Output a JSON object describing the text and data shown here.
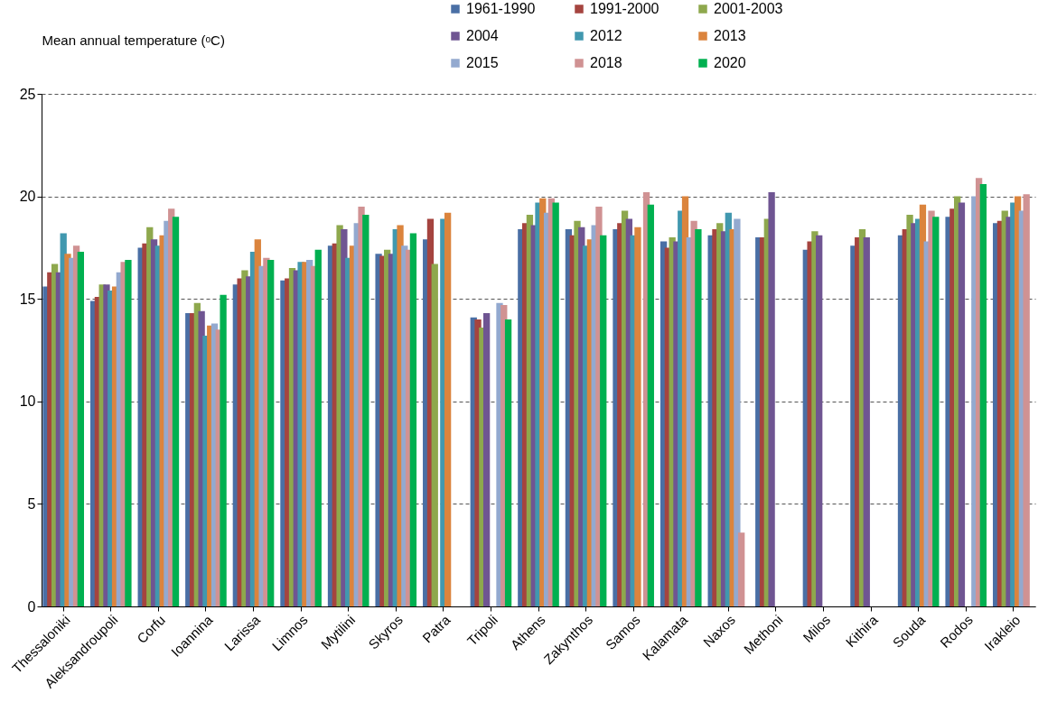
{
  "chart_data": {
    "type": "bar",
    "ylabel": "Mean annual temperature (ᵒC)",
    "categories": [
      "Thessaloniki",
      "Aleksandroupoli",
      "Corfu",
      "Ioannina",
      "Larissa",
      "Limnos",
      "Mytilini",
      "Skyros",
      "Patra",
      "Tripoli",
      "Athens",
      "Zakynthos",
      "Samos",
      "Kalamata",
      "Naxos",
      "Methoni",
      "Milos",
      "Kithira",
      "Souda",
      "Rodos",
      "Irakleio"
    ],
    "series": [
      {
        "name": "1961-1990",
        "color": "#4a6fa5",
        "values": [
          15.6,
          14.9,
          17.5,
          14.3,
          15.7,
          15.9,
          17.6,
          17.2,
          17.9,
          14.1,
          18.4,
          18.4,
          18.4,
          17.8,
          18.1,
          18.0,
          17.4,
          17.6,
          18.1,
          19.0,
          18.7
        ]
      },
      {
        "name": "1991-2000",
        "color": "#a5443f",
        "values": [
          16.3,
          15.1,
          17.7,
          14.3,
          16.0,
          16.0,
          17.7,
          17.1,
          18.9,
          14.0,
          18.7,
          18.1,
          18.7,
          17.5,
          18.4,
          18.0,
          17.8,
          18.0,
          18.4,
          19.4,
          18.8
        ]
      },
      {
        "name": "2001-2003",
        "color": "#8ea84d",
        "values": [
          16.7,
          15.7,
          18.5,
          14.8,
          16.4,
          16.5,
          18.6,
          17.4,
          16.7,
          13.6,
          19.1,
          18.8,
          19.3,
          18.0,
          18.7,
          18.9,
          18.3,
          18.4,
          19.1,
          20.0,
          19.3
        ]
      },
      {
        "name": "2004",
        "color": "#6f5592",
        "values": [
          16.3,
          15.7,
          17.9,
          14.4,
          16.1,
          16.4,
          18.4,
          17.2,
          null,
          14.3,
          18.6,
          18.5,
          18.9,
          17.8,
          18.3,
          20.2,
          18.1,
          18.0,
          18.7,
          19.7,
          19.0
        ]
      },
      {
        "name": "2012",
        "color": "#4198af",
        "values": [
          18.2,
          15.4,
          17.6,
          13.2,
          17.3,
          16.8,
          17.0,
          18.4,
          18.9,
          null,
          19.7,
          17.6,
          18.1,
          19.3,
          19.2,
          null,
          null,
          null,
          18.9,
          null,
          19.7
        ]
      },
      {
        "name": "2013",
        "color": "#db843d",
        "values": [
          17.2,
          15.6,
          18.1,
          13.7,
          17.9,
          16.8,
          17.6,
          18.6,
          19.2,
          null,
          19.9,
          17.9,
          18.5,
          20.0,
          18.4,
          null,
          null,
          null,
          19.6,
          null,
          20.0
        ]
      },
      {
        "name": "2015",
        "color": "#93a9cf",
        "values": [
          17.0,
          16.3,
          18.8,
          13.8,
          16.6,
          16.9,
          18.7,
          17.6,
          null,
          14.8,
          19.2,
          18.6,
          null,
          18.0,
          18.9,
          null,
          null,
          null,
          17.8,
          20.0,
          19.3
        ]
      },
      {
        "name": "2018",
        "color": "#d09293",
        "values": [
          17.6,
          16.8,
          19.4,
          13.5,
          17.0,
          16.6,
          19.5,
          17.4,
          null,
          14.7,
          19.9,
          19.5,
          20.2,
          18.8,
          3.6,
          null,
          null,
          null,
          19.3,
          20.9,
          20.1
        ]
      },
      {
        "name": "2020",
        "color": "#00b050",
        "values": [
          17.3,
          16.9,
          19.0,
          15.2,
          16.9,
          17.4,
          19.1,
          18.2,
          null,
          14.0,
          19.7,
          18.1,
          19.6,
          18.4,
          null,
          null,
          null,
          null,
          19.0,
          20.6,
          null
        ]
      }
    ],
    "ylim": [
      0,
      25
    ],
    "yticks": [
      0,
      5,
      10,
      15,
      20,
      25
    ],
    "grid": "y",
    "legend": "top"
  }
}
